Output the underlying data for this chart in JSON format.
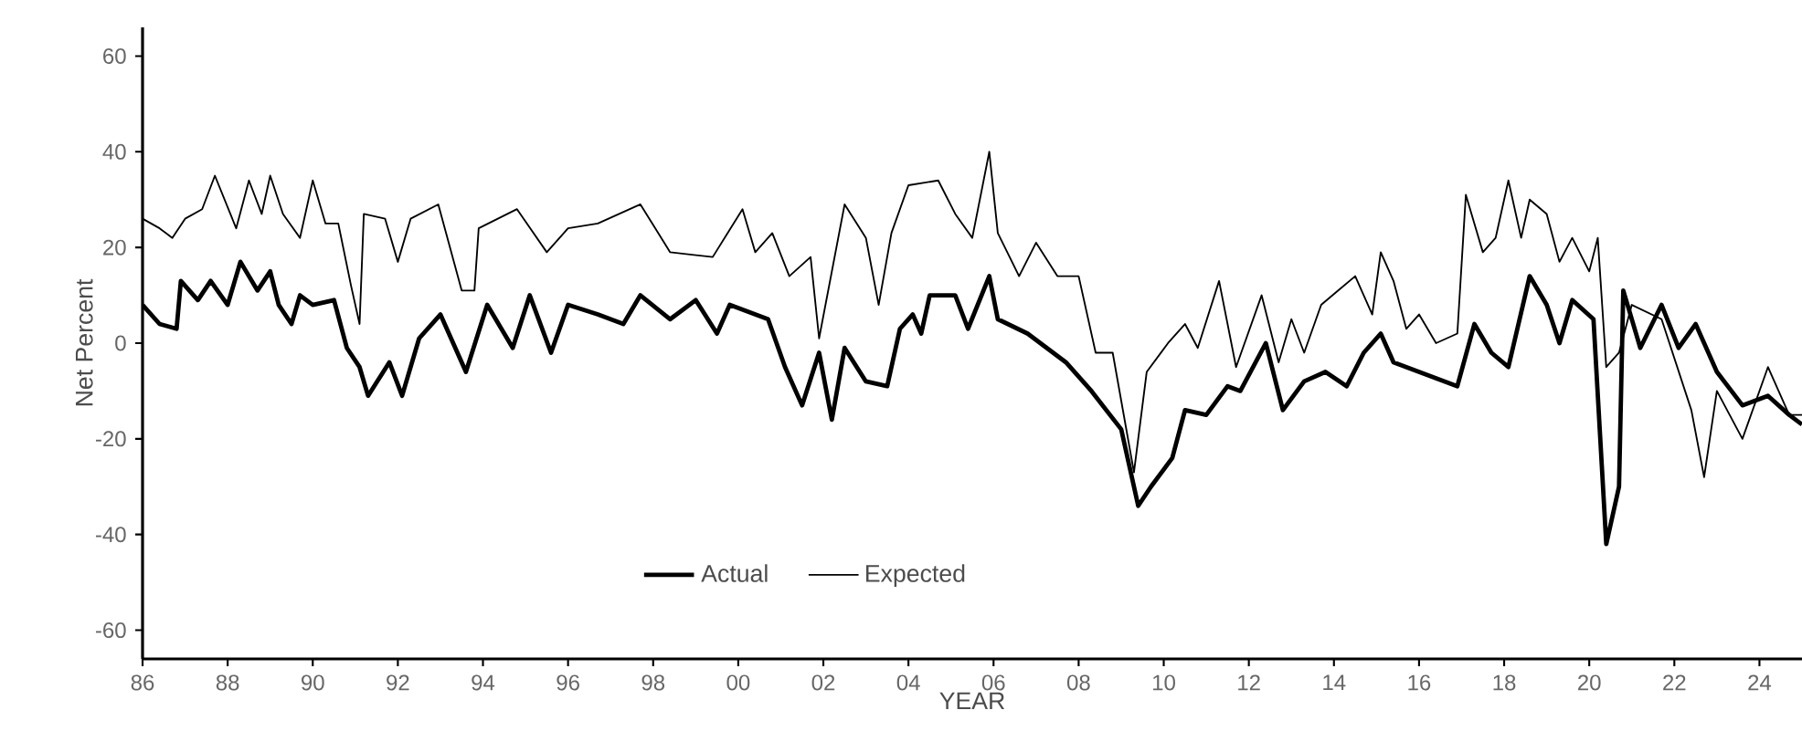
{
  "chart_data": {
    "type": "line",
    "xlabel": "YEAR",
    "ylabel": "Net Percent",
    "xlim": [
      1986,
      2025
    ],
    "ylim": [
      -66,
      66
    ],
    "xticks": [
      {
        "value": 1986,
        "label": "86"
      },
      {
        "value": 1988,
        "label": "88"
      },
      {
        "value": 1990,
        "label": "90"
      },
      {
        "value": 1992,
        "label": "92"
      },
      {
        "value": 1994,
        "label": "94"
      },
      {
        "value": 1996,
        "label": "96"
      },
      {
        "value": 1998,
        "label": "98"
      },
      {
        "value": 2000,
        "label": "00"
      },
      {
        "value": 2002,
        "label": "02"
      },
      {
        "value": 2004,
        "label": "04"
      },
      {
        "value": 2006,
        "label": "06"
      },
      {
        "value": 2008,
        "label": "08"
      },
      {
        "value": 2010,
        "label": "10"
      },
      {
        "value": 2012,
        "label": "12"
      },
      {
        "value": 2014,
        "label": "14"
      },
      {
        "value": 2016,
        "label": "16"
      },
      {
        "value": 2018,
        "label": "18"
      },
      {
        "value": 2020,
        "label": "20"
      },
      {
        "value": 2022,
        "label": "22"
      },
      {
        "value": 2024,
        "label": "24"
      }
    ],
    "yticks": [
      -60,
      -40,
      -20,
      0,
      20,
      40,
      60
    ],
    "grid": false,
    "legend": "bottom",
    "marker": "none",
    "line_style": "solid",
    "series": [
      {
        "name": "Actual",
        "color": "#000000",
        "x": [
          1986.0,
          1986.4,
          1986.8,
          1986.9,
          1987.3,
          1987.6,
          1988.0,
          1988.3,
          1988.7,
          1989.0,
          1989.2,
          1989.5,
          1989.7,
          1990.0,
          1990.5,
          1990.8,
          1991.1,
          1991.3,
          1991.8,
          1992.1,
          1992.5,
          1993.0,
          1993.3,
          1993.6,
          1994.1,
          1994.7,
          1995.1,
          1995.6,
          1996.0,
          1996.7,
          1997.3,
          1997.7,
          1998.4,
          1999.0,
          1999.5,
          1999.8,
          2000.7,
          2001.1,
          2001.5,
          2001.9,
          2002.2,
          2002.5,
          2003.0,
          2003.5,
          2003.8,
          2004.1,
          2004.3,
          2004.5,
          2005.1,
          2005.4,
          2005.9,
          2006.1,
          2006.8,
          2007.7,
          2008.3,
          2009.0,
          2009.4,
          2009.7,
          2010.2,
          2010.5,
          2011.0,
          2011.5,
          2011.8,
          2012.4,
          2012.8,
          2013.3,
          2013.8,
          2014.3,
          2014.7,
          2015.1,
          2015.4,
          2016.0,
          2016.9,
          2017.3,
          2017.7,
          2018.1,
          2018.6,
          2019.0,
          2019.3,
          2019.6,
          2020.1,
          2020.4,
          2020.7,
          2020.8,
          2021.2,
          2021.7,
          2022.1,
          2022.5,
          2023.0,
          2023.6,
          2024.2,
          2024.7,
          2025.0
        ],
        "values": [
          8,
          4,
          3,
          13,
          9,
          13,
          8,
          17,
          11,
          15,
          8,
          4,
          10,
          8,
          9,
          -1,
          -5,
          -11,
          -4,
          -11,
          1,
          6,
          0,
          -6,
          8,
          -1,
          10,
          -2,
          8,
          6,
          4,
          10,
          5,
          9,
          2,
          8,
          5,
          -5,
          -13,
          -2,
          -16,
          -1,
          -8,
          -9,
          3,
          6,
          2,
          10,
          10,
          3,
          14,
          5,
          2,
          -4,
          -10,
          -18,
          -34,
          -30,
          -24,
          -14,
          -15,
          -9,
          -10,
          0,
          -14,
          -8,
          -6,
          -9,
          -2,
          2,
          -4,
          -6,
          -9,
          4,
          -2,
          -5,
          14,
          8,
          0,
          9,
          5,
          -42,
          -30,
          11,
          -1,
          8,
          -1,
          4,
          -6,
          -13,
          -11,
          -15,
          -17
        ]
      },
      {
        "name": "Expected",
        "color": "#000000",
        "x": [
          1986.0,
          1986.4,
          1986.7,
          1987.0,
          1987.4,
          1987.7,
          1988.2,
          1988.5,
          1988.8,
          1989.0,
          1989.3,
          1989.7,
          1990.0,
          1990.3,
          1990.6,
          1990.9,
          1991.1,
          1991.2,
          1991.7,
          1992.0,
          1992.3,
          1992.95,
          1993.5,
          1993.8,
          1993.9,
          1994.8,
          1995.5,
          1996.0,
          1996.7,
          1997.7,
          1998.4,
          1999.4,
          2000.1,
          2000.4,
          2000.8,
          2001.2,
          2001.7,
          2001.9,
          2002.5,
          2003.0,
          2003.3,
          2003.6,
          2004.0,
          2004.7,
          2005.1,
          2005.5,
          2005.9,
          2006.1,
          2006.6,
          2007.0,
          2007.5,
          2008.0,
          2008.4,
          2008.8,
          2009.3,
          2009.6,
          2010.1,
          2010.5,
          2010.8,
          2011.3,
          2011.7,
          2012.3,
          2012.7,
          2013.0,
          2013.3,
          2013.7,
          2014.1,
          2014.5,
          2014.9,
          2015.1,
          2015.4,
          2015.7,
          2016.0,
          2016.4,
          2016.9,
          2017.1,
          2017.5,
          2017.8,
          2018.1,
          2018.4,
          2018.6,
          2019.0,
          2019.3,
          2019.6,
          2020.0,
          2020.2,
          2020.4,
          2020.7,
          2021.0,
          2021.7,
          2022.4,
          2022.7,
          2023.0,
          2023.6,
          2024.2,
          2024.7,
          2025.0
        ],
        "values": [
          26,
          24,
          22,
          26,
          28,
          35,
          24,
          34,
          27,
          35,
          27,
          22,
          34,
          25,
          25,
          12,
          4,
          27,
          26,
          17,
          26,
          29,
          11,
          11,
          24,
          28,
          19,
          24,
          25,
          29,
          19,
          18,
          28,
          19,
          23,
          14,
          18,
          1,
          29,
          22,
          8,
          23,
          33,
          34,
          27,
          22,
          40,
          23,
          14,
          21,
          14,
          14,
          -2,
          -2,
          -27,
          -6,
          0,
          4,
          -1,
          13,
          -5,
          10,
          -4,
          5,
          -2,
          8,
          11,
          14,
          6,
          19,
          13,
          3,
          6,
          0,
          2,
          31,
          19,
          22,
          34,
          22,
          30,
          27,
          17,
          22,
          15,
          22,
          -5,
          -2,
          8,
          5,
          -14,
          -28,
          -10,
          -20,
          -5,
          -15,
          -15
        ]
      }
    ]
  }
}
